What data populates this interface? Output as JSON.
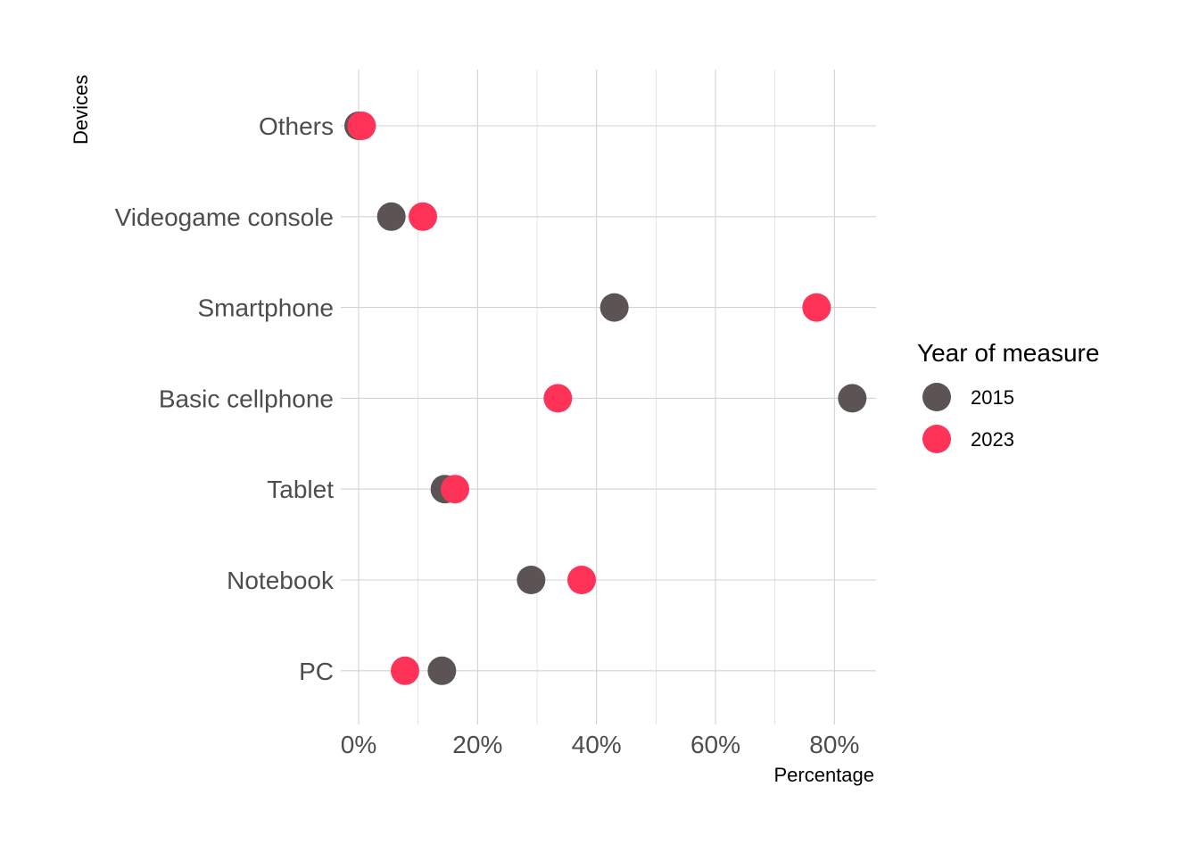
{
  "chart_data": {
    "type": "scatter",
    "subtype": "dot-plot",
    "xlabel": "Percentage",
    "ylabel": "Devices",
    "xlim": [
      -0.03,
      0.87
    ],
    "x_ticks": [
      0,
      0.2,
      0.4,
      0.6,
      0.8
    ],
    "x_tick_labels": [
      "0%",
      "20%",
      "40%",
      "60%",
      "80%"
    ],
    "categories": [
      "Others",
      "Videogame console",
      "Smartphone",
      "Basic cellphone",
      "Tablet",
      "Notebook",
      "PC"
    ],
    "grid": true,
    "legend": {
      "title": "Year of measure",
      "position": "right"
    },
    "series": [
      {
        "name": "2015",
        "color": "#5b5354",
        "values": [
          0.0,
          0.055,
          0.43,
          0.83,
          0.145,
          0.29,
          0.14
        ]
      },
      {
        "name": "2023",
        "color": "#ff3358",
        "values": [
          0.005,
          0.108,
          0.77,
          0.335,
          0.162,
          0.375,
          0.078
        ]
      }
    ]
  }
}
